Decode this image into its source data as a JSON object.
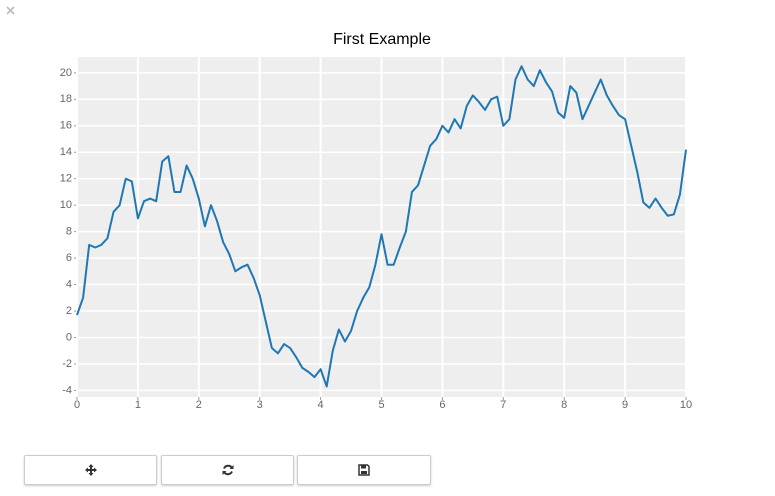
{
  "chart_data": {
    "type": "line",
    "title": "First Example",
    "x": [
      0,
      0.1,
      0.2,
      0.3,
      0.4,
      0.5,
      0.6,
      0.7,
      0.8,
      0.9,
      1,
      1.1,
      1.2,
      1.3,
      1.4,
      1.5,
      1.6,
      1.7,
      1.8,
      1.9,
      2,
      2.1,
      2.2,
      2.3,
      2.4,
      2.5,
      2.6,
      2.7,
      2.8,
      2.9,
      3,
      3.1,
      3.2,
      3.3,
      3.4,
      3.5,
      3.6,
      3.7,
      3.8,
      3.9,
      4,
      4.1,
      4.2,
      4.3,
      4.4,
      4.5,
      4.6,
      4.7,
      4.8,
      4.9,
      5,
      5.1,
      5.2,
      5.3,
      5.4,
      5.5,
      5.6,
      5.7,
      5.8,
      5.9,
      6,
      6.1,
      6.2,
      6.3,
      6.4,
      6.5,
      6.6,
      6.7,
      6.8,
      6.9,
      7,
      7.1,
      7.2,
      7.3,
      7.4,
      7.5,
      7.6,
      7.7,
      7.8,
      7.9,
      8,
      8.1,
      8.2,
      8.3,
      8.4,
      8.5,
      8.6,
      8.7,
      8.8,
      8.9,
      9,
      9.1,
      9.2,
      9.3,
      9.4,
      9.5,
      9.6,
      9.7,
      9.8,
      9.9,
      10
    ],
    "values": [
      1.7,
      3,
      7,
      6.8,
      7,
      7.5,
      9.5,
      10,
      12,
      11.8,
      9,
      10.3,
      10.5,
      10.3,
      13.3,
      13.7,
      11,
      11,
      13,
      12,
      10.5,
      8.4,
      10,
      8.8,
      7.2,
      6.3,
      5,
      5.3,
      5.5,
      4.5,
      3.2,
      1.2,
      -0.8,
      -1.2,
      -0.5,
      -0.8,
      -1.5,
      -2.3,
      -2.6,
      -3,
      -2.4,
      -3.7,
      -1,
      0.6,
      -0.3,
      0.5,
      2,
      3,
      3.8,
      5.5,
      7.8,
      5.5,
      5.5,
      6.8,
      8,
      11,
      11.5,
      13,
      14.5,
      15,
      16,
      15.5,
      16.5,
      15.8,
      17.5,
      18.3,
      17.8,
      17.2,
      18,
      18.2,
      16,
      16.5,
      19.5,
      20.5,
      19.5,
      19,
      20.2,
      19.3,
      18.6,
      17,
      16.6,
      19,
      18.5,
      16.5,
      17.5,
      18.5,
      19.5,
      18.3,
      17.5,
      16.8,
      16.5,
      14.5,
      12.5,
      10.2,
      9.8,
      10.5,
      9.8,
      9.2,
      9.3,
      10.8,
      14.2
    ],
    "color": "#1f77b4",
    "xlim": [
      0,
      10
    ],
    "xticks": [
      0,
      1,
      2,
      3,
      4,
      5,
      6,
      7,
      8,
      9,
      10
    ],
    "ylim": [
      -4.5,
      21.2
    ],
    "yticks": [
      -4,
      -2,
      0,
      2,
      4,
      6,
      8,
      10,
      12,
      14,
      16,
      18,
      20
    ],
    "grid": true
  }
}
